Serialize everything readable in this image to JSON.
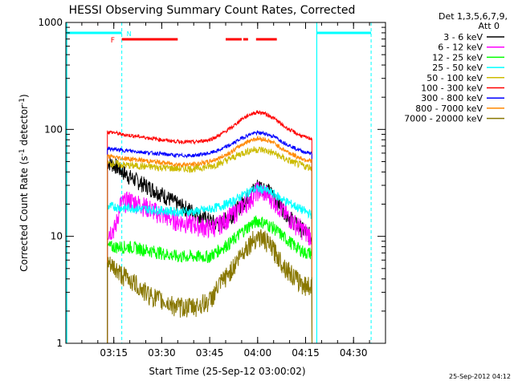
{
  "chart_data": {
    "type": "line",
    "title": "HESSI Observing Summary Count Rates, Corrected",
    "xlabel": "Start Time (25-Sep-12 03:00:02)",
    "ylabel_main": "Corrected Count Rate (s",
    "ylabel_sup1": "-1",
    "ylabel_mid": " detector",
    "ylabel_sup2": "-1",
    "ylabel_end": ")",
    "y_scale": "log",
    "ylim": [
      1,
      1000
    ],
    "xlim_minutes": [
      0,
      100
    ],
    "x_ticks": [
      {
        "m": 15,
        "label": "03:15"
      },
      {
        "m": 30,
        "label": "03:30"
      },
      {
        "m": 45,
        "label": "03:45"
      },
      {
        "m": 60,
        "label": "04:00"
      },
      {
        "m": 75,
        "label": "04:15"
      },
      {
        "m": 90,
        "label": "04:30"
      }
    ],
    "y_ticks": [
      {
        "v": 1,
        "label": "1"
      },
      {
        "v": 10,
        "label": "10"
      },
      {
        "v": 100,
        "label": "100"
      },
      {
        "v": 1000,
        "label": "1000"
      }
    ],
    "legend": {
      "header1": "Det 1,3,5,6,7,9,",
      "header2": "Att 0"
    },
    "series": [
      {
        "name": "3 - 6 keV",
        "color": "#000000",
        "x": [
          13,
          15.5,
          17,
          20,
          25,
          30,
          35,
          40,
          45,
          48,
          52,
          55,
          58,
          60,
          62,
          65,
          68,
          72,
          75,
          77
        ],
        "y": [
          50,
          46,
          42,
          36,
          30,
          25,
          20,
          17,
          14,
          13,
          16,
          20,
          26,
          30,
          29,
          24,
          18,
          13,
          11,
          10
        ]
      },
      {
        "name": "6 - 12 keV",
        "color": "#ff00ff",
        "x": [
          13,
          15.5,
          17,
          20,
          25,
          30,
          35,
          40,
          45,
          48,
          52,
          55,
          58,
          60,
          62,
          65,
          68,
          72,
          75,
          77
        ],
        "y": [
          11,
          12,
          20,
          22,
          19,
          16,
          14,
          13,
          12,
          13,
          16,
          19,
          23,
          27,
          26,
          22,
          17,
          13,
          11,
          10
        ]
      },
      {
        "name": "12 - 25 keV",
        "color": "#00ff00",
        "x": [
          13,
          15.5,
          17,
          20,
          25,
          30,
          35,
          40,
          45,
          48,
          52,
          55,
          58,
          60,
          62,
          65,
          68,
          72,
          75,
          77
        ],
        "y": [
          8,
          8,
          8,
          8,
          7.5,
          7,
          6.5,
          6.5,
          6.5,
          7.5,
          9,
          11,
          13,
          14,
          13.5,
          12,
          10,
          8,
          7,
          7
        ]
      },
      {
        "name": "25 - 50 keV",
        "color": "#00ffff",
        "x": [
          13,
          15.5,
          17,
          20,
          25,
          30,
          35,
          40,
          45,
          48,
          52,
          55,
          58,
          60,
          62,
          65,
          68,
          72,
          75,
          77
        ],
        "y": [
          19,
          19,
          18.5,
          18.5,
          18,
          17.5,
          17,
          17,
          18,
          19,
          21,
          24,
          27,
          28,
          27.5,
          25,
          22,
          19,
          17,
          16
        ]
      },
      {
        "name": "50 - 100 keV",
        "color": "#ccbb00",
        "x": [
          13,
          15.5,
          17,
          20,
          25,
          30,
          35,
          40,
          45,
          48,
          52,
          55,
          58,
          60,
          62,
          65,
          68,
          72,
          75,
          77
        ],
        "y": [
          48,
          48,
          47,
          46,
          45,
          44,
          43,
          43,
          45,
          48,
          54,
          60,
          64,
          65,
          64,
          60,
          54,
          48,
          45,
          44
        ]
      },
      {
        "name": "100 - 300 keV",
        "color": "#ff0000",
        "x": [
          13,
          15.5,
          17,
          20,
          25,
          30,
          35,
          40,
          45,
          48,
          52,
          55,
          58,
          60,
          62,
          65,
          68,
          72,
          75,
          77
        ],
        "y": [
          95,
          93,
          90,
          88,
          84,
          80,
          77,
          76,
          80,
          88,
          105,
          125,
          140,
          145,
          142,
          128,
          108,
          92,
          84,
          82
        ]
      },
      {
        "name": "300 - 800 keV",
        "color": "#0000ff",
        "x": [
          13,
          15.5,
          17,
          20,
          25,
          30,
          35,
          40,
          45,
          48,
          52,
          55,
          58,
          60,
          62,
          65,
          68,
          72,
          75,
          77
        ],
        "y": [
          66,
          65,
          64,
          63,
          61,
          59,
          57,
          57,
          60,
          64,
          73,
          83,
          91,
          93,
          92,
          86,
          76,
          66,
          61,
          60
        ]
      },
      {
        "name": "800 - 7000 keV",
        "color": "#ff8800",
        "x": [
          13,
          15.5,
          17,
          20,
          25,
          30,
          35,
          40,
          45,
          48,
          52,
          55,
          58,
          60,
          62,
          65,
          68,
          72,
          75,
          77
        ],
        "y": [
          56,
          55,
          54,
          53,
          51,
          49,
          47,
          47,
          50,
          54,
          62,
          72,
          80,
          82,
          81,
          75,
          65,
          56,
          52,
          51
        ]
      },
      {
        "name": "7000 - 20000 keV",
        "color": "#887700",
        "x": [
          13,
          15.5,
          17,
          20,
          25,
          30,
          35,
          40,
          45,
          48,
          52,
          55,
          58,
          60,
          62,
          65,
          68,
          72,
          75,
          77
        ],
        "y": [
          5.5,
          5,
          4.5,
          4,
          3,
          2.5,
          2.2,
          2.2,
          2.5,
          3.5,
          5,
          7,
          9,
          10,
          9.5,
          7.5,
          5.5,
          4,
          3.5,
          3.5
        ]
      }
    ],
    "flags": [
      {
        "label": "N",
        "color": "#00ffff"
      },
      {
        "label": "F",
        "color": "#ff0000"
      }
    ],
    "footer": "25-Sep-2012 04:12"
  }
}
